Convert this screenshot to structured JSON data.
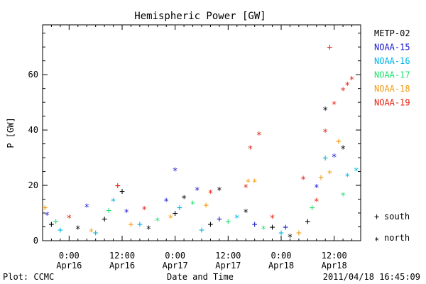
{
  "chart_data": {
    "type": "scatter",
    "title": "Hemispheric Power [GW]",
    "ylabel": "P [GW]",
    "xlabel": "Date and Time",
    "ylim": [
      0,
      78
    ],
    "yticks": [
      0,
      20,
      40,
      60
    ],
    "xlim": [
      "2011-04-15T18:00",
      "2011-04-18T18:00"
    ],
    "xticks": [
      {
        "time": "2011-04-16T00:00",
        "line1": "0:00",
        "line2": "Apr16"
      },
      {
        "time": "2011-04-16T12:00",
        "line1": "12:00",
        "line2": "Apr16"
      },
      {
        "time": "2011-04-17T00:00",
        "line1": "0:00",
        "line2": "Apr17"
      },
      {
        "time": "2011-04-17T12:00",
        "line1": "12:00",
        "line2": "Apr17"
      },
      {
        "time": "2011-04-18T00:00",
        "line1": "0:00",
        "line2": "Apr18"
      },
      {
        "time": "2011-04-18T12:00",
        "line1": "12:00",
        "line2": "Apr18"
      }
    ],
    "legend_position": "right",
    "series": [
      {
        "name": "METP-02",
        "color": "#000000",
        "points": [
          {
            "t": "2011-04-15T20:00",
            "p": 6,
            "h": "south"
          },
          {
            "t": "2011-04-16T02:00",
            "p": 5,
            "h": "north"
          },
          {
            "t": "2011-04-16T08:00",
            "p": 8,
            "h": "south"
          },
          {
            "t": "2011-04-16T12:00",
            "p": 18,
            "h": "south"
          },
          {
            "t": "2011-04-16T18:00",
            "p": 5,
            "h": "north"
          },
          {
            "t": "2011-04-17T00:00",
            "p": 10,
            "h": "south"
          },
          {
            "t": "2011-04-17T02:00",
            "p": 16,
            "h": "north"
          },
          {
            "t": "2011-04-17T08:00",
            "p": 6,
            "h": "south"
          },
          {
            "t": "2011-04-17T10:00",
            "p": 19,
            "h": "north"
          },
          {
            "t": "2011-04-17T16:00",
            "p": 11,
            "h": "north"
          },
          {
            "t": "2011-04-17T22:00",
            "p": 5,
            "h": "south"
          },
          {
            "t": "2011-04-18T02:00",
            "p": 2,
            "h": "north"
          },
          {
            "t": "2011-04-18T06:00",
            "p": 7,
            "h": "south"
          },
          {
            "t": "2011-04-18T10:00",
            "p": 48,
            "h": "north"
          },
          {
            "t": "2011-04-18T14:00",
            "p": 34,
            "h": "north"
          }
        ]
      },
      {
        "name": "NOAA-15",
        "color": "#1a1ad0",
        "points": [
          {
            "t": "2011-04-15T19:00",
            "p": 10,
            "h": "north"
          },
          {
            "t": "2011-04-16T04:00",
            "p": 13,
            "h": "north"
          },
          {
            "t": "2011-04-16T13:00",
            "p": 11,
            "h": "north"
          },
          {
            "t": "2011-04-16T22:00",
            "p": 15,
            "h": "north"
          },
          {
            "t": "2011-04-17T00:00",
            "p": 26,
            "h": "north"
          },
          {
            "t": "2011-04-17T05:00",
            "p": 19,
            "h": "north"
          },
          {
            "t": "2011-04-17T10:00",
            "p": 8,
            "h": "south"
          },
          {
            "t": "2011-04-17T18:00",
            "p": 6,
            "h": "south"
          },
          {
            "t": "2011-04-18T01:00",
            "p": 5,
            "h": "south"
          },
          {
            "t": "2011-04-18T08:00",
            "p": 20,
            "h": "north"
          },
          {
            "t": "2011-04-18T12:00",
            "p": 31,
            "h": "north"
          }
        ]
      },
      {
        "name": "NOAA-16",
        "color": "#00b4e6",
        "points": [
          {
            "t": "2011-04-15T22:00",
            "p": 4,
            "h": "south"
          },
          {
            "t": "2011-04-16T06:00",
            "p": 3,
            "h": "south"
          },
          {
            "t": "2011-04-16T10:00",
            "p": 15,
            "h": "north"
          },
          {
            "t": "2011-04-16T16:00",
            "p": 6,
            "h": "south"
          },
          {
            "t": "2011-04-17T01:00",
            "p": 12,
            "h": "south"
          },
          {
            "t": "2011-04-17T06:00",
            "p": 4,
            "h": "south"
          },
          {
            "t": "2011-04-17T14:00",
            "p": 9,
            "h": "north"
          },
          {
            "t": "2011-04-18T00:00",
            "p": 3,
            "h": "south"
          },
          {
            "t": "2011-04-18T10:00",
            "p": 30,
            "h": "south"
          },
          {
            "t": "2011-04-18T15:00",
            "p": 24,
            "h": "north"
          },
          {
            "t": "2011-04-18T17:00",
            "p": 26,
            "h": "north"
          }
        ]
      },
      {
        "name": "NOAA-17",
        "color": "#20e070",
        "points": [
          {
            "t": "2011-04-15T21:00",
            "p": 7,
            "h": "south"
          },
          {
            "t": "2011-04-16T09:00",
            "p": 11,
            "h": "south"
          },
          {
            "t": "2011-04-16T20:00",
            "p": 8,
            "h": "north"
          },
          {
            "t": "2011-04-17T04:00",
            "p": 14,
            "h": "north"
          },
          {
            "t": "2011-04-17T12:00",
            "p": 7,
            "h": "south"
          },
          {
            "t": "2011-04-17T20:00",
            "p": 5,
            "h": "north"
          },
          {
            "t": "2011-04-18T07:00",
            "p": 12,
            "h": "south"
          },
          {
            "t": "2011-04-18T14:00",
            "p": 17,
            "h": "north"
          }
        ]
      },
      {
        "name": "NOAA-18",
        "color": "#f09a10",
        "points": [
          {
            "t": "2011-04-15T18:30",
            "p": 12,
            "h": "south"
          },
          {
            "t": "2011-04-16T05:00",
            "p": 4,
            "h": "north"
          },
          {
            "t": "2011-04-16T14:00",
            "p": 6,
            "h": "south"
          },
          {
            "t": "2011-04-16T23:00",
            "p": 9,
            "h": "north"
          },
          {
            "t": "2011-04-17T07:00",
            "p": 13,
            "h": "south"
          },
          {
            "t": "2011-04-17T16:30",
            "p": 22,
            "h": "north"
          },
          {
            "t": "2011-04-17T18:00",
            "p": 22,
            "h": "north"
          },
          {
            "t": "2011-04-18T04:00",
            "p": 3,
            "h": "south"
          },
          {
            "t": "2011-04-18T09:00",
            "p": 23,
            "h": "south"
          },
          {
            "t": "2011-04-18T11:00",
            "p": 25,
            "h": "north"
          },
          {
            "t": "2011-04-18T13:00",
            "p": 36,
            "h": "south"
          }
        ]
      },
      {
        "name": "NOAA-19",
        "color": "#e82010",
        "points": [
          {
            "t": "2011-04-16T00:00",
            "p": 9,
            "h": "north"
          },
          {
            "t": "2011-04-16T11:00",
            "p": 20,
            "h": "south"
          },
          {
            "t": "2011-04-16T17:00",
            "p": 12,
            "h": "north"
          },
          {
            "t": "2011-04-17T08:00",
            "p": 18,
            "h": "north"
          },
          {
            "t": "2011-04-17T16:00",
            "p": 20,
            "h": "north"
          },
          {
            "t": "2011-04-17T17:00",
            "p": 34,
            "h": "north"
          },
          {
            "t": "2011-04-17T19:00",
            "p": 39,
            "h": "north"
          },
          {
            "t": "2011-04-17T22:00",
            "p": 9,
            "h": "north"
          },
          {
            "t": "2011-04-18T05:00",
            "p": 23,
            "h": "north"
          },
          {
            "t": "2011-04-18T08:00",
            "p": 15,
            "h": "north"
          },
          {
            "t": "2011-04-18T10:00",
            "p": 40,
            "h": "north"
          },
          {
            "t": "2011-04-18T11:00",
            "p": 70,
            "h": "south"
          },
          {
            "t": "2011-04-18T12:00",
            "p": 50,
            "h": "north"
          },
          {
            "t": "2011-04-18T14:00",
            "p": 55,
            "h": "north"
          },
          {
            "t": "2011-04-18T15:00",
            "p": 57,
            "h": "north"
          },
          {
            "t": "2011-04-18T16:00",
            "p": 59,
            "h": "north"
          }
        ]
      }
    ],
    "marker_key": [
      {
        "symbol": "+",
        "label": "south"
      },
      {
        "symbol": "*",
        "label": "north"
      }
    ]
  },
  "footer": {
    "left": "Plot: CCMC",
    "right": "2011/04/18 16:45:09"
  }
}
